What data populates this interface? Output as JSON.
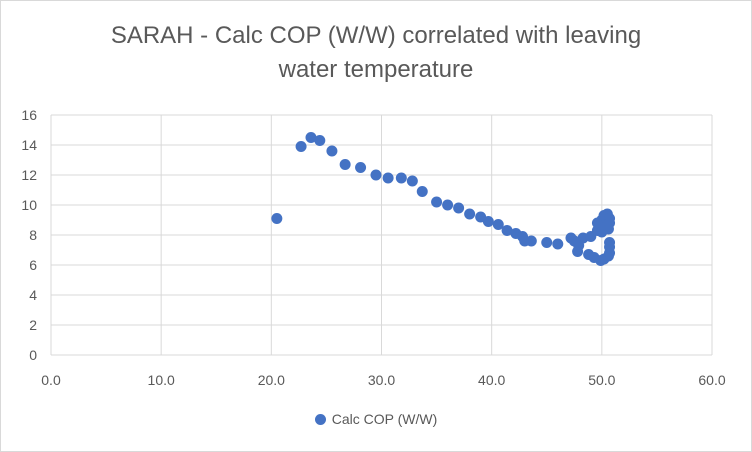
{
  "chart_data": {
    "type": "scatter",
    "title_line1": "SARAH - Calc COP (W/W) correlated with leaving",
    "title_line2": "water temperature",
    "xlabel": "",
    "ylabel": "",
    "xlim": [
      0,
      60
    ],
    "ylim": [
      0,
      16
    ],
    "x_ticks": [
      "0.0",
      "10.0",
      "20.0",
      "30.0",
      "40.0",
      "50.0",
      "60.0"
    ],
    "y_ticks": [
      "0",
      "2",
      "4",
      "6",
      "8",
      "10",
      "12",
      "14",
      "16"
    ],
    "grid": true,
    "legend_position": "bottom",
    "series": [
      {
        "name": "Calc COP (W/W)",
        "color": "#4472c4",
        "points": [
          [
            20.5,
            9.1
          ],
          [
            22.7,
            13.9
          ],
          [
            23.6,
            14.5
          ],
          [
            24.4,
            14.3
          ],
          [
            25.5,
            13.6
          ],
          [
            26.7,
            12.7
          ],
          [
            28.1,
            12.5
          ],
          [
            29.5,
            12.0
          ],
          [
            30.6,
            11.8
          ],
          [
            31.8,
            11.8
          ],
          [
            32.8,
            11.6
          ],
          [
            33.7,
            10.9
          ],
          [
            35.0,
            10.2
          ],
          [
            36.0,
            10.0
          ],
          [
            37.0,
            9.8
          ],
          [
            38.0,
            9.4
          ],
          [
            39.0,
            9.2
          ],
          [
            39.7,
            8.9
          ],
          [
            40.6,
            8.7
          ],
          [
            41.4,
            8.3
          ],
          [
            42.2,
            8.1
          ],
          [
            42.8,
            7.9
          ],
          [
            43.0,
            7.6
          ],
          [
            43.6,
            7.6
          ],
          [
            45.0,
            7.5
          ],
          [
            46.0,
            7.4
          ],
          [
            47.2,
            7.8
          ],
          [
            47.5,
            7.6
          ],
          [
            47.9,
            7.3
          ],
          [
            48.3,
            7.8
          ],
          [
            47.8,
            6.9
          ],
          [
            48.8,
            6.7
          ],
          [
            49.3,
            6.5
          ],
          [
            49.9,
            6.3
          ],
          [
            50.2,
            6.4
          ],
          [
            50.6,
            6.6
          ],
          [
            50.7,
            6.8
          ],
          [
            50.7,
            7.2
          ],
          [
            50.7,
            7.5
          ],
          [
            49.0,
            7.9
          ],
          [
            49.6,
            8.3
          ],
          [
            49.6,
            8.8
          ],
          [
            50.0,
            9.0
          ],
          [
            50.2,
            9.3
          ],
          [
            50.5,
            9.4
          ],
          [
            50.7,
            9.1
          ],
          [
            50.7,
            8.8
          ],
          [
            50.6,
            8.4
          ],
          [
            50.3,
            8.5
          ],
          [
            50.0,
            8.2
          ]
        ]
      }
    ]
  }
}
